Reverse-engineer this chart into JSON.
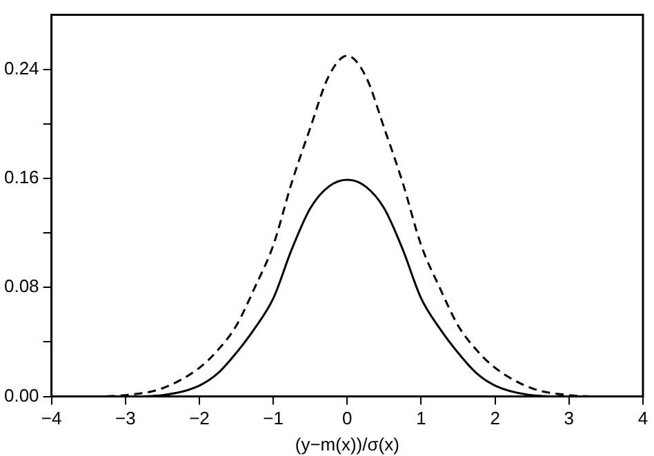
{
  "chart_data": {
    "type": "line",
    "xlabel": "(y−m(x))/σ(x)",
    "x": [
      -4,
      -3.5,
      -3,
      -2.5,
      -2,
      -1.75,
      -1.5,
      -1.25,
      -1,
      -0.75,
      -0.5,
      -0.25,
      0,
      0.25,
      0.5,
      0.75,
      1,
      1.25,
      1.5,
      1.75,
      2,
      2.5,
      3,
      3.5,
      4
    ],
    "series": [
      {
        "color": "#000000",
        "line_style": "solid",
        "values": [
          0,
          0,
          0,
          0.001,
          0.008,
          0.017,
          0.032,
          0.05,
          0.072,
          0.108,
          0.138,
          0.154,
          0.159,
          0.154,
          0.138,
          0.108,
          0.072,
          0.05,
          0.032,
          0.017,
          0.008,
          0.001,
          0,
          0,
          0
        ]
      },
      {
        "color": "#000000",
        "line_style": "dashed",
        "values": [
          0,
          0,
          0.001,
          0.006,
          0.021,
          0.034,
          0.052,
          0.08,
          0.111,
          0.157,
          0.197,
          0.235,
          0.25,
          0.235,
          0.197,
          0.157,
          0.111,
          0.08,
          0.052,
          0.034,
          0.021,
          0.006,
          0.001,
          0,
          0
        ]
      }
    ],
    "xlim": [
      -4,
      4
    ],
    "xticks": [
      -4,
      -3,
      -2,
      -1,
      0,
      1,
      2,
      3,
      4
    ],
    "ylim": [
      0,
      0.28
    ],
    "yticks": [
      "0.00",
      {
        "value": 0.04,
        "label": null
      },
      {
        "value": 0.08,
        "label": "0.08"
      },
      {
        "value": 0.12,
        "label": null
      },
      {
        "value": 0.16,
        "label": "0.16"
      },
      {
        "value": 0.2,
        "label": null
      },
      {
        "value": 0.24,
        "label": "0.24"
      }
    ],
    "grid": false,
    "legend": false,
    "marker": "none"
  }
}
